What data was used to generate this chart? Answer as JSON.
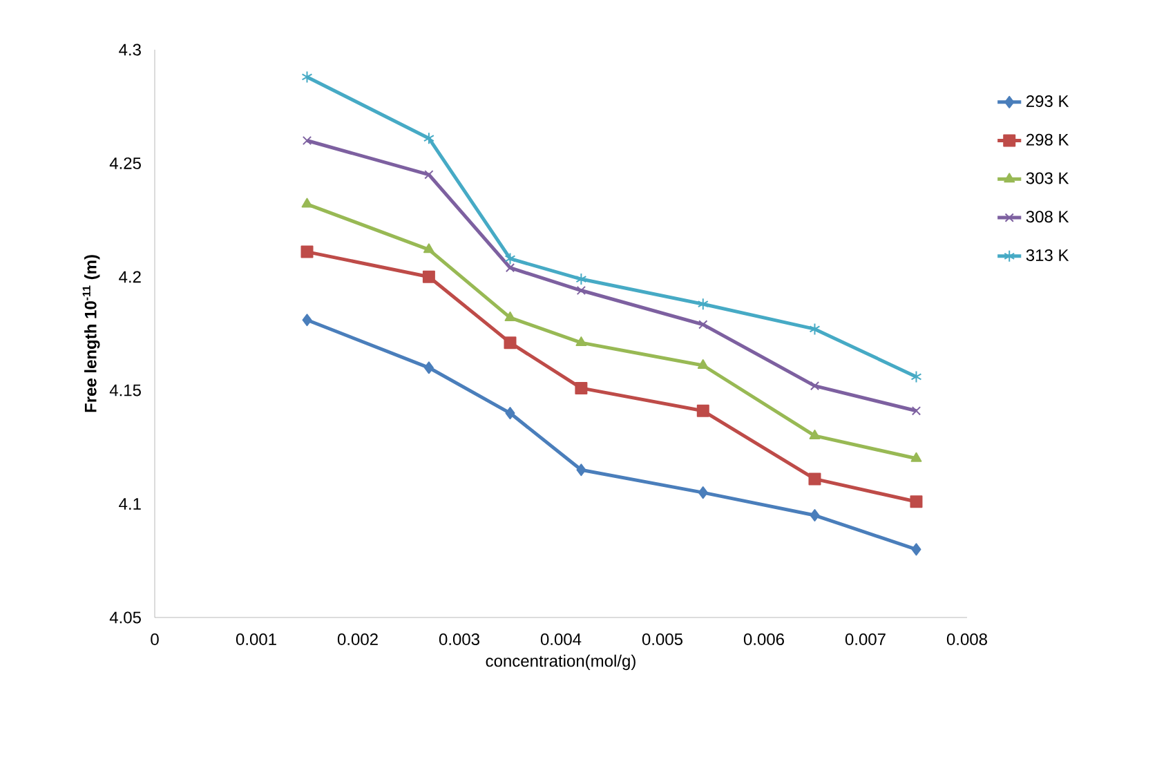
{
  "chart_data": {
    "type": "line",
    "xlabel": "concentration(mol/g)",
    "ylabel": "Free length 10$^{-11}$ (m)",
    "x": [
      0.0015,
      0.0027,
      0.0035,
      0.0042,
      0.0054,
      0.0065,
      0.0075
    ],
    "series": [
      {
        "name": "293 K",
        "color": "#4a7ebb",
        "marker": "diamond",
        "values": [
          4.181,
          4.16,
          4.14,
          4.115,
          4.105,
          4.095,
          4.08
        ]
      },
      {
        "name": "298 K",
        "color": "#be4b48",
        "marker": "square",
        "values": [
          4.211,
          4.2,
          4.171,
          4.151,
          4.141,
          4.111,
          4.101
        ]
      },
      {
        "name": "303 K",
        "color": "#98b954",
        "marker": "triangle",
        "values": [
          4.232,
          4.212,
          4.182,
          4.171,
          4.161,
          4.13,
          4.12
        ]
      },
      {
        "name": "308 K",
        "color": "#7d60a0",
        "marker": "cross",
        "values": [
          4.26,
          4.245,
          4.204,
          4.194,
          4.179,
          4.152,
          4.141
        ]
      },
      {
        "name": "313 K",
        "color": "#46aac5",
        "marker": "cross",
        "values": [
          4.288,
          4.261,
          4.208,
          4.199,
          4.188,
          4.177,
          4.156
        ]
      }
    ],
    "xlim": [
      0,
      0.008
    ],
    "ylim": [
      4.05,
      4.3
    ],
    "xticks": [
      0,
      0.001,
      0.002,
      0.003,
      0.004,
      0.005,
      0.006,
      0.007,
      0.008
    ],
    "yticks": [
      4.05,
      4.1,
      4.15,
      4.2,
      4.25,
      4.3
    ],
    "legend": "right",
    "grid": false,
    "line_style": "solid"
  }
}
